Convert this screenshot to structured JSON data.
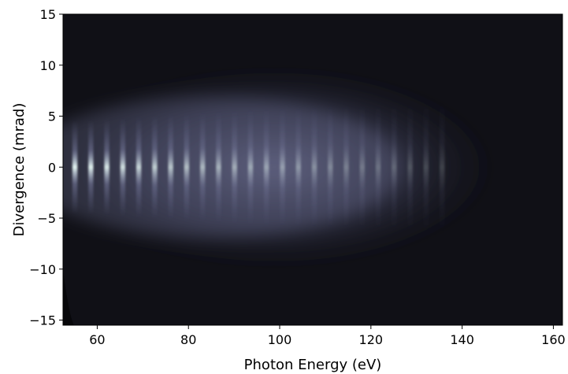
{
  "chart_data": {
    "type": "heatmap",
    "title": "",
    "xlabel": "Photon Energy (eV)",
    "ylabel": "Divergence (mrad)",
    "xlim": [
      52.5,
      162
    ],
    "ylim": [
      -15.5,
      15
    ],
    "x_ticks": [
      60,
      80,
      100,
      120,
      140,
      160
    ],
    "y_ticks": [
      15,
      10,
      5,
      0,
      -5,
      -10,
      -15
    ],
    "x_tick_labels": [
      "60",
      "80",
      "100",
      "120",
      "140",
      "160"
    ],
    "y_tick_labels": [
      "15",
      "10",
      "5",
      "0",
      "−5",
      "−10",
      "−15"
    ],
    "grid": false,
    "colormap": "bone",
    "colors": {
      "background": "#101016",
      "peak": "#e6f8f4",
      "mid": "#6a6f98",
      "low": "#23243a"
    },
    "harmonics": {
      "energies_ev": [
        55.1,
        58.6,
        62.1,
        65.6,
        69.1,
        72.6,
        76.1,
        79.6,
        83.1,
        86.6,
        90.1,
        93.6,
        97.1,
        100.6,
        104.1,
        107.6,
        111.1,
        114.6,
        118.1,
        121.6,
        125.1,
        128.6,
        132.1,
        135.6
      ],
      "relative_intensity": [
        1.0,
        0.97,
        0.92,
        0.86,
        0.8,
        0.74,
        0.68,
        0.62,
        0.57,
        0.52,
        0.47,
        0.42,
        0.38,
        0.34,
        0.3,
        0.26,
        0.22,
        0.18,
        0.15,
        0.12,
        0.09,
        0.07,
        0.05,
        0.03
      ]
    },
    "envelope": {
      "center_divergence_mrad": 0,
      "harmonic_divergence_half_width_mrad": 4,
      "plateau_divergence_half_width_mrad": 9,
      "cutoff_energy_ev": 145
    }
  }
}
